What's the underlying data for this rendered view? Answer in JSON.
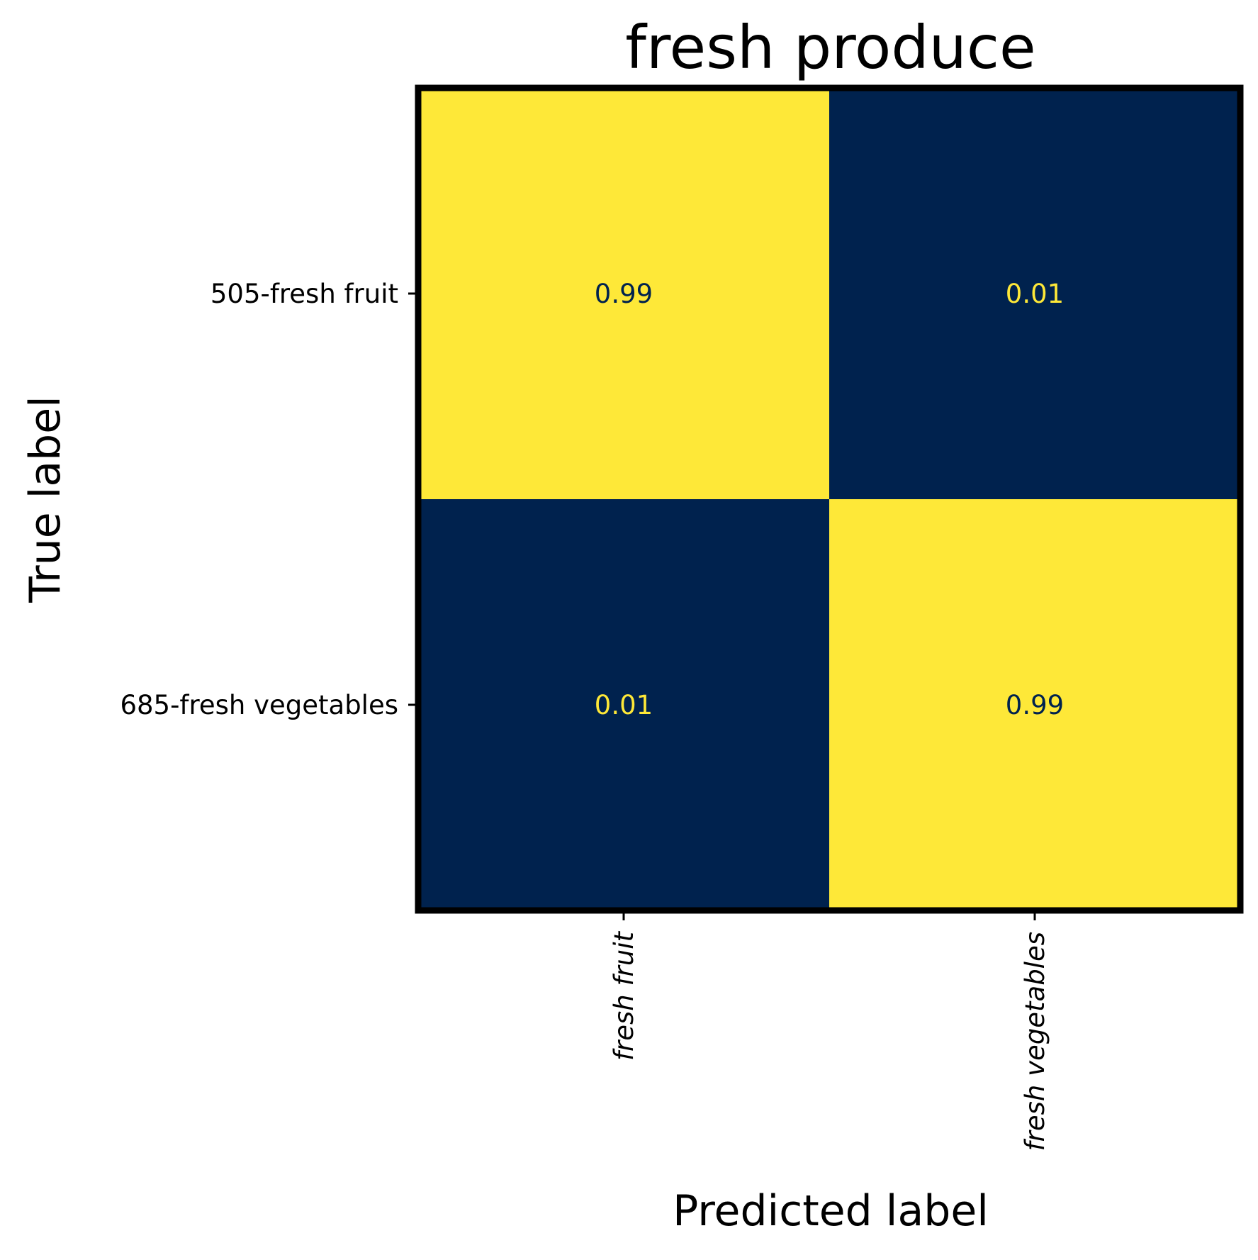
{
  "chart_data": {
    "type": "heatmap",
    "title": "fresh produce",
    "xlabel": "Predicted label",
    "ylabel": "True label",
    "x_categories": [
      "fresh fruit",
      "fresh vegetables"
    ],
    "y_categories": [
      "505-fresh fruit",
      "685-fresh vegetables"
    ],
    "values": [
      [
        0.99,
        0.01
      ],
      [
        0.01,
        0.99
      ]
    ],
    "value_labels": [
      [
        "0.99",
        "0.01"
      ],
      [
        "0.01",
        "0.99"
      ]
    ],
    "colormap": {
      "low": "#00224e",
      "high": "#fee838"
    },
    "grid": false,
    "legend": "none"
  }
}
